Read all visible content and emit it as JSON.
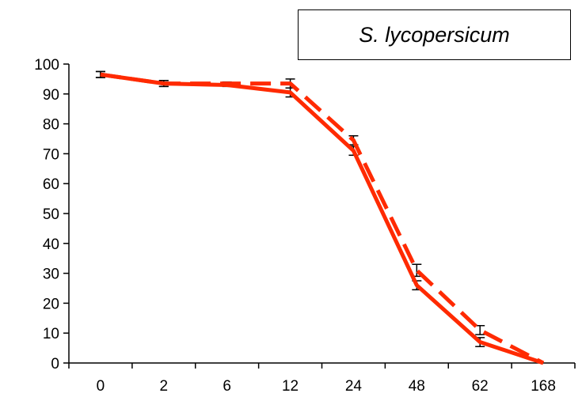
{
  "chart_data": {
    "type": "line",
    "title": "S. lycopersicum",
    "xlabel": "",
    "ylabel": "",
    "categories": [
      "0",
      "2",
      "6",
      "12",
      "24",
      "48",
      "62",
      "168"
    ],
    "ylim": [
      0,
      100
    ],
    "yticks": [
      0,
      10,
      20,
      30,
      40,
      50,
      60,
      70,
      80,
      90,
      100
    ],
    "grid": false,
    "series": [
      {
        "style": "solid",
        "color": "#ff2a00",
        "values": [
          96.5,
          93.5,
          93,
          90.5,
          71,
          26,
          7,
          0
        ],
        "errors": [
          1,
          1,
          0.5,
          1.5,
          1.5,
          1.5,
          1.5,
          0
        ]
      },
      {
        "style": "dashed",
        "color": "#ff2a00",
        "values": [
          96.5,
          93.5,
          93.5,
          93.5,
          74.5,
          31,
          11,
          0
        ],
        "errors": [
          1,
          1,
          0.5,
          1.5,
          1.5,
          2,
          1.5,
          0
        ]
      }
    ]
  }
}
